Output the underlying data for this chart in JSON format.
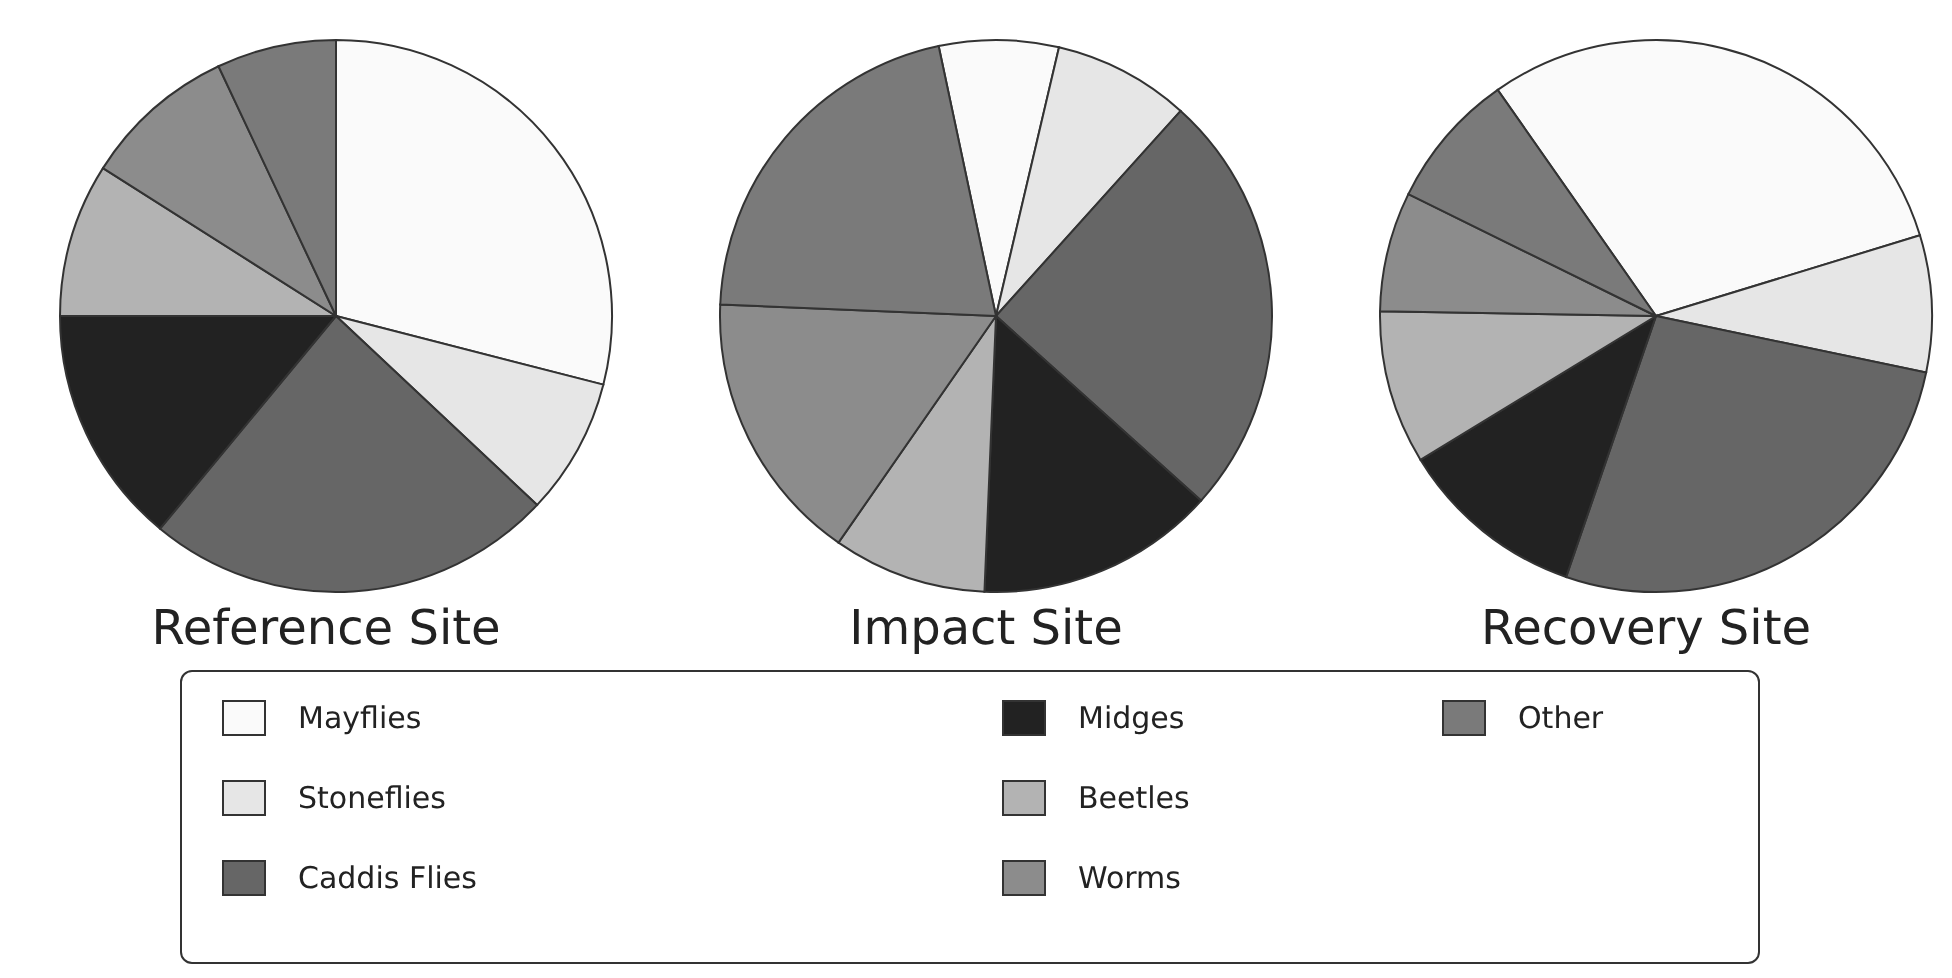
{
  "chart_data": [
    {
      "type": "pie",
      "title": "Reference Site",
      "categories": [
        "Mayflies",
        "Stoneflies",
        "Caddis Flies",
        "Midges",
        "Beetles",
        "Worms",
        "Other"
      ],
      "values": [
        29,
        8,
        24,
        14,
        9,
        9,
        7
      ],
      "colors": [
        "#fafafa",
        "#e6e6e6",
        "#666666",
        "#222222",
        "#b3b3b3",
        "#8c8c8c",
        "#7a7a7a"
      ],
      "legend": "bottom"
    },
    {
      "type": "pie",
      "title": "Impact Site",
      "categories": [
        null,
        null,
        null,
        null,
        null,
        null,
        null
      ],
      "values": [
        7,
        8,
        25,
        14,
        9,
        16,
        21
      ],
      "colors": [
        "#fafafa",
        "#e6e6e6",
        "#666666",
        "#222222",
        "#b3b3b3",
        "#8c8c8c",
        "#7a7a7a"
      ]
    },
    {
      "type": "pie",
      "title": "Recovery Site",
      "categories": [
        null,
        null,
        null,
        null,
        null,
        null,
        null
      ],
      "values": [
        30,
        8,
        27,
        11,
        9,
        7,
        8
      ],
      "colors": [
        "#fafafa",
        "#e6e6e6",
        "#666666",
        "#222222",
        "#b3b3b3",
        "#8c8c8c",
        "#7a7a7a"
      ]
    }
  ]
}
